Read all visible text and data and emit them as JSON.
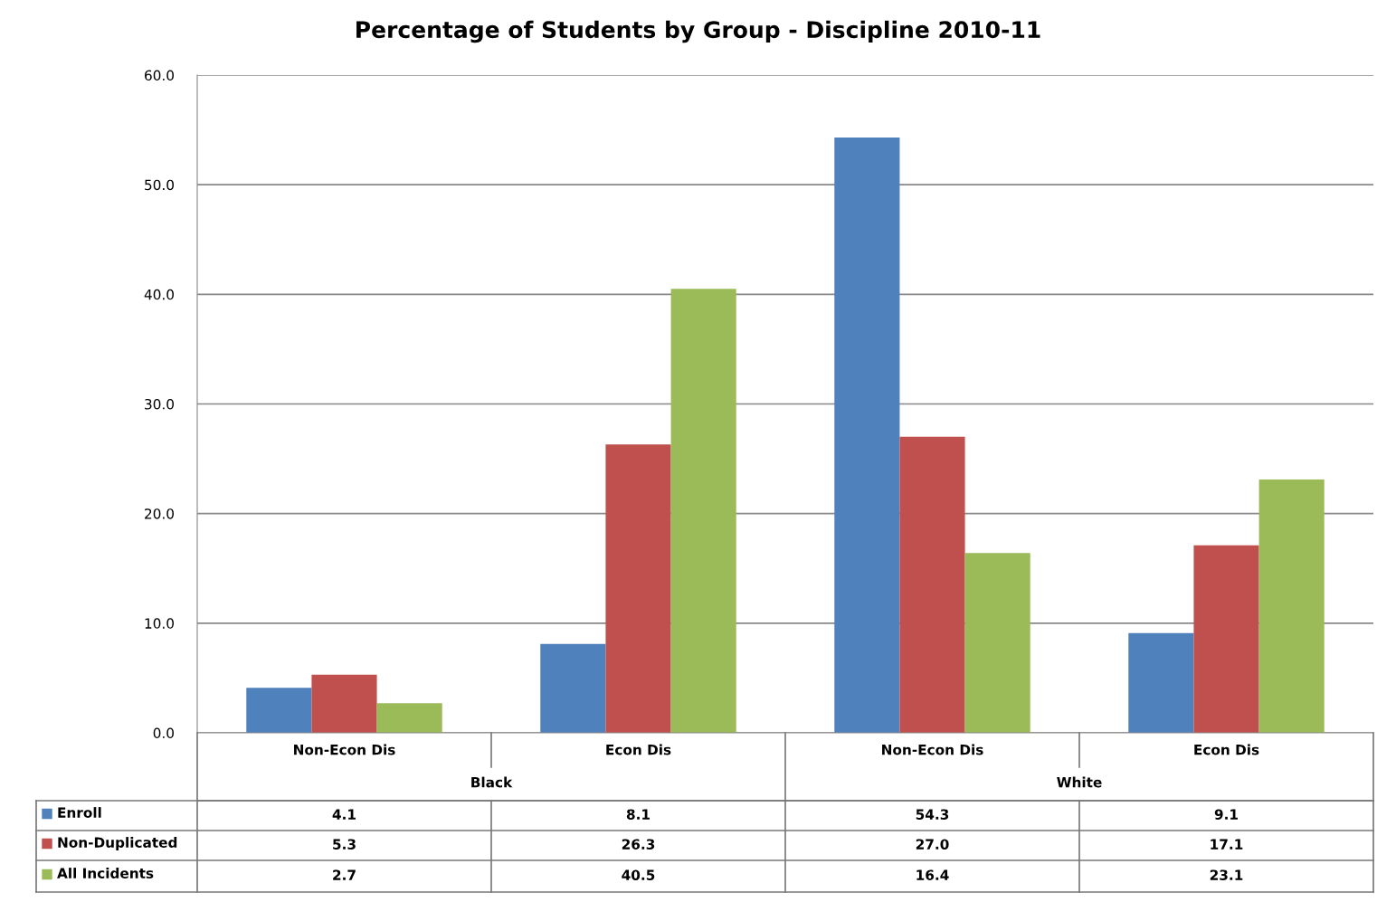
{
  "chart_data": {
    "type": "bar",
    "title": "Percentage of Students by Group - Discipline 2010-11",
    "categories": [
      "Non-Econ Dis",
      "Econ Dis",
      "Non-Econ Dis",
      "Econ Dis"
    ],
    "annotations": [
      "Black",
      "White"
    ],
    "series": [
      {
        "name": "Enroll",
        "color": "#4f81bd",
        "values": [
          4.1,
          8.1,
          54.3,
          9.1
        ],
        "value_labels": [
          "4.1",
          "8.1",
          "54.3",
          "9.1"
        ]
      },
      {
        "name": "Non-Duplicated",
        "color": "#c0504d",
        "values": [
          5.3,
          26.3,
          27.0,
          17.1
        ],
        "value_labels": [
          "5.3",
          "26.3",
          "27.0",
          "17.1"
        ]
      },
      {
        "name": "All Incidents",
        "color": "#9bbb59",
        "values": [
          2.7,
          40.5,
          16.4,
          23.1
        ],
        "value_labels": [
          "2.7",
          "40.5",
          "16.4",
          "23.1"
        ]
      }
    ],
    "ylim": [
      0,
      60
    ],
    "yticks": [
      {
        "value": 0,
        "label": "0.0"
      },
      {
        "value": 10,
        "label": "10.0"
      },
      {
        "value": 20,
        "label": "20.0"
      },
      {
        "value": 30,
        "label": "30.0"
      },
      {
        "value": 40,
        "label": "40.0"
      },
      {
        "value": 50,
        "label": "50.0"
      },
      {
        "value": 60,
        "label": "60.0"
      }
    ],
    "grid": "y",
    "legend": "bottom"
  }
}
